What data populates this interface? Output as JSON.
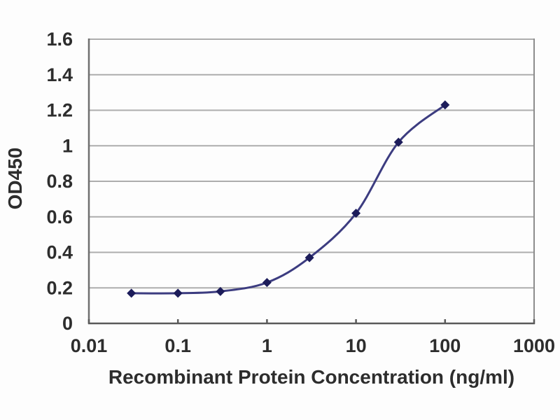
{
  "chart_data": {
    "type": "line",
    "xlabel": "Recombinant Protein Concentration (ng/ml)",
    "ylabel": "OD450",
    "x_scale": "log",
    "y_scale": "linear",
    "xlim": [
      0.01,
      1000
    ],
    "ylim": [
      0,
      1.6
    ],
    "x": [
      0.03,
      0.1,
      0.3,
      1,
      3,
      10,
      30,
      100
    ],
    "y": [
      0.17,
      0.17,
      0.18,
      0.23,
      0.37,
      0.62,
      1.02,
      1.23
    ],
    "x_tick_labels": [
      "0.01",
      "0.1",
      "1",
      "10",
      "100",
      "1000"
    ],
    "x_tick_values": [
      0.01,
      0.1,
      1,
      10,
      100,
      1000
    ],
    "y_tick_labels": [
      "0",
      "0.2",
      "0.4",
      "0.6",
      "0.8",
      "1",
      "1.2",
      "1.4",
      "1.6"
    ],
    "y_tick_values": [
      0,
      0.2,
      0.4,
      0.6,
      0.8,
      1,
      1.2,
      1.4,
      1.6
    ],
    "grid": "horizontal",
    "legend": "none",
    "marker": "diamond",
    "line_smoothing": "smooth",
    "colors": {
      "line": "#3c3c80",
      "marker": "#1c1c5a",
      "grid": "#adadad",
      "axis": "#6f6f6f",
      "border_right": "#8c8c8c",
      "axis_bottom": "#5a5a5a",
      "text": "#2d2d2d",
      "background": "#fdfdfd"
    }
  }
}
